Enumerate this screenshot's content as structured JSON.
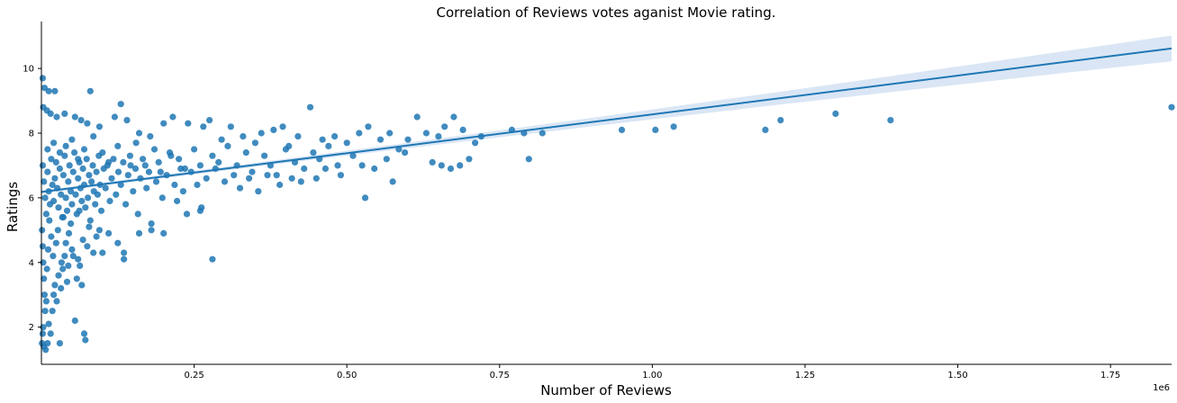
{
  "chart_data": {
    "type": "scatter",
    "title": "Correlation of Reviews votes aganist Movie rating.",
    "xlabel": "Number of Reviews",
    "ylabel": "Ratings",
    "x_offset_label": "1e6",
    "xlim": [
      0,
      1850000
    ],
    "ylim": [
      0.85,
      11.45
    ],
    "xticks": [
      {
        "value": 250000,
        "label": "0.25"
      },
      {
        "value": 500000,
        "label": "0.50"
      },
      {
        "value": 750000,
        "label": "0.75"
      },
      {
        "value": 1000000,
        "label": "1.00"
      },
      {
        "value": 1250000,
        "label": "1.25"
      },
      {
        "value": 1500000,
        "label": "1.50"
      },
      {
        "value": 1750000,
        "label": "1.75"
      }
    ],
    "yticks": [
      {
        "value": 2,
        "label": "2"
      },
      {
        "value": 4,
        "label": "4"
      },
      {
        "value": 6,
        "label": "6"
      },
      {
        "value": 8,
        "label": "8"
      },
      {
        "value": 10,
        "label": "10"
      }
    ],
    "grid": false,
    "point_color": "#1f77b4",
    "regression": {
      "x": [
        0,
        1850000
      ],
      "y": [
        6.18,
        10.62
      ],
      "ci_half_width": [
        0.05,
        0.4
      ],
      "color": "#1f77b4",
      "band_color": "#aec7e8"
    },
    "points": [
      [
        2000,
        9.7
      ],
      [
        5000,
        9.4
      ],
      [
        12000,
        9.3
      ],
      [
        22000,
        9.3
      ],
      [
        80000,
        9.3
      ],
      [
        130000,
        8.9
      ],
      [
        3000,
        8.8
      ],
      [
        9000,
        8.7
      ],
      [
        15000,
        8.6
      ],
      [
        25000,
        8.5
      ],
      [
        38000,
        8.6
      ],
      [
        55000,
        8.5
      ],
      [
        65000,
        8.4
      ],
      [
        75000,
        8.3
      ],
      [
        95000,
        8.2
      ],
      [
        120000,
        8.5
      ],
      [
        140000,
        8.4
      ],
      [
        160000,
        8.0
      ],
      [
        178000,
        7.9
      ],
      [
        200000,
        8.3
      ],
      [
        215000,
        8.5
      ],
      [
        240000,
        8.3
      ],
      [
        265000,
        8.2
      ],
      [
        275000,
        8.4
      ],
      [
        295000,
        7.8
      ],
      [
        310000,
        8.2
      ],
      [
        330000,
        7.9
      ],
      [
        350000,
        7.7
      ],
      [
        360000,
        8.0
      ],
      [
        380000,
        8.1
      ],
      [
        395000,
        8.2
      ],
      [
        405000,
        7.6
      ],
      [
        420000,
        7.9
      ],
      [
        440000,
        8.8
      ],
      [
        460000,
        7.8
      ],
      [
        480000,
        7.9
      ],
      [
        500000,
        7.7
      ],
      [
        520000,
        8.0
      ],
      [
        535000,
        8.2
      ],
      [
        555000,
        7.8
      ],
      [
        570000,
        8.0
      ],
      [
        585000,
        7.5
      ],
      [
        600000,
        7.8
      ],
      [
        615000,
        8.5
      ],
      [
        630000,
        8.0
      ],
      [
        650000,
        7.9
      ],
      [
        660000,
        8.2
      ],
      [
        675000,
        8.5
      ],
      [
        690000,
        8.1
      ],
      [
        710000,
        7.7
      ],
      [
        720000,
        7.9
      ],
      [
        770000,
        8.1
      ],
      [
        790000,
        8.0
      ],
      [
        820000,
        8.0
      ],
      [
        950000,
        8.1
      ],
      [
        1005000,
        8.1
      ],
      [
        1035000,
        8.2
      ],
      [
        1185000,
        8.1
      ],
      [
        1210000,
        8.4
      ],
      [
        1300000,
        8.6
      ],
      [
        1390000,
        8.4
      ],
      [
        1850000,
        8.8
      ],
      [
        10000,
        7.5
      ],
      [
        20000,
        7.7
      ],
      [
        30000,
        7.4
      ],
      [
        40000,
        7.6
      ],
      [
        50000,
        7.8
      ],
      [
        60000,
        7.2
      ],
      [
        70000,
        7.5
      ],
      [
        85000,
        7.9
      ],
      [
        100000,
        7.4
      ],
      [
        110000,
        7.1
      ],
      [
        125000,
        7.6
      ],
      [
        145000,
        7.3
      ],
      [
        155000,
        7.7
      ],
      [
        170000,
        7.0
      ],
      [
        185000,
        7.5
      ],
      [
        195000,
        6.8
      ],
      [
        210000,
        7.4
      ],
      [
        225000,
        7.2
      ],
      [
        235000,
        6.9
      ],
      [
        250000,
        7.5
      ],
      [
        260000,
        7.0
      ],
      [
        280000,
        7.3
      ],
      [
        290000,
        7.1
      ],
      [
        305000,
        7.6
      ],
      [
        320000,
        7.0
      ],
      [
        335000,
        7.4
      ],
      [
        345000,
        6.8
      ],
      [
        365000,
        7.3
      ],
      [
        375000,
        7.0
      ],
      [
        385000,
        6.7
      ],
      [
        400000,
        7.5
      ],
      [
        415000,
        7.1
      ],
      [
        430000,
        6.9
      ],
      [
        445000,
        7.4
      ],
      [
        455000,
        7.2
      ],
      [
        470000,
        7.6
      ],
      [
        485000,
        7.0
      ],
      [
        510000,
        7.3
      ],
      [
        525000,
        7.0
      ],
      [
        545000,
        6.9
      ],
      [
        565000,
        7.2
      ],
      [
        575000,
        6.5
      ],
      [
        595000,
        7.4
      ],
      [
        640000,
        7.1
      ],
      [
        655000,
        7.0
      ],
      [
        670000,
        6.9
      ],
      [
        685000,
        7.0
      ],
      [
        700000,
        7.2
      ],
      [
        798000,
        7.2
      ],
      [
        530000,
        6.0
      ],
      [
        2000,
        7.0
      ],
      [
        4000,
        6.5
      ],
      [
        6000,
        6.0
      ],
      [
        8000,
        5.5
      ],
      [
        10000,
        6.8
      ],
      [
        12000,
        6.2
      ],
      [
        14000,
        5.8
      ],
      [
        16000,
        7.2
      ],
      [
        18000,
        6.4
      ],
      [
        20000,
        5.9
      ],
      [
        22000,
        6.6
      ],
      [
        24000,
        7.1
      ],
      [
        26000,
        6.3
      ],
      [
        28000,
        5.7
      ],
      [
        30000,
        6.9
      ],
      [
        32000,
        6.1
      ],
      [
        34000,
        5.4
      ],
      [
        36000,
        6.7
      ],
      [
        38000,
        7.3
      ],
      [
        40000,
        6.0
      ],
      [
        42000,
        5.6
      ],
      [
        44000,
        6.5
      ],
      [
        46000,
        7.0
      ],
      [
        48000,
        6.2
      ],
      [
        50000,
        5.8
      ],
      [
        52000,
        6.8
      ],
      [
        54000,
        7.4
      ],
      [
        56000,
        6.1
      ],
      [
        58000,
        5.5
      ],
      [
        60000,
        6.6
      ],
      [
        62000,
        7.1
      ],
      [
        64000,
        6.3
      ],
      [
        66000,
        5.9
      ],
      [
        68000,
        6.9
      ],
      [
        70000,
        6.4
      ],
      [
        72000,
        5.7
      ],
      [
        74000,
        7.2
      ],
      [
        76000,
        6.0
      ],
      [
        78000,
        6.7
      ],
      [
        80000,
        5.3
      ],
      [
        82000,
        6.5
      ],
      [
        84000,
        7.0
      ],
      [
        86000,
        6.2
      ],
      [
        88000,
        5.8
      ],
      [
        90000,
        6.8
      ],
      [
        92000,
        6.1
      ],
      [
        94000,
        7.3
      ],
      [
        96000,
        6.4
      ],
      [
        98000,
        5.6
      ],
      [
        102000,
        6.9
      ],
      [
        105000,
        6.3
      ],
      [
        108000,
        7.0
      ],
      [
        112000,
        5.9
      ],
      [
        115000,
        6.6
      ],
      [
        118000,
        7.2
      ],
      [
        122000,
        6.1
      ],
      [
        126000,
        6.8
      ],
      [
        130000,
        6.4
      ],
      [
        134000,
        7.1
      ],
      [
        138000,
        5.8
      ],
      [
        142000,
        6.7
      ],
      [
        146000,
        7.0
      ],
      [
        150000,
        6.2
      ],
      [
        154000,
        6.9
      ],
      [
        158000,
        5.5
      ],
      [
        162000,
        6.6
      ],
      [
        166000,
        7.2
      ],
      [
        172000,
        6.3
      ],
      [
        176000,
        6.8
      ],
      [
        180000,
        5.2
      ],
      [
        188000,
        6.5
      ],
      [
        192000,
        7.1
      ],
      [
        198000,
        6.0
      ],
      [
        205000,
        6.7
      ],
      [
        212000,
        7.3
      ],
      [
        218000,
        6.4
      ],
      [
        222000,
        5.9
      ],
      [
        228000,
        6.9
      ],
      [
        232000,
        6.2
      ],
      [
        238000,
        5.5
      ],
      [
        245000,
        6.8
      ],
      [
        255000,
        6.4
      ],
      [
        262000,
        5.7
      ],
      [
        270000,
        6.6
      ],
      [
        285000,
        6.9
      ],
      [
        300000,
        6.5
      ],
      [
        315000,
        6.7
      ],
      [
        325000,
        6.3
      ],
      [
        340000,
        6.6
      ],
      [
        355000,
        6.2
      ],
      [
        370000,
        6.7
      ],
      [
        390000,
        6.4
      ],
      [
        410000,
        6.6
      ],
      [
        425000,
        6.5
      ],
      [
        450000,
        6.6
      ],
      [
        465000,
        6.9
      ],
      [
        490000,
        6.7
      ],
      [
        1000,
        5.0
      ],
      [
        2000,
        4.5
      ],
      [
        3000,
        4.0
      ],
      [
        4000,
        3.5
      ],
      [
        5000,
        3.0
      ],
      [
        6000,
        2.5
      ],
      [
        3000,
        2.0
      ],
      [
        2000,
        1.8
      ],
      [
        1000,
        1.5
      ],
      [
        4000,
        1.4
      ],
      [
        7000,
        1.3
      ],
      [
        10000,
        1.5
      ],
      [
        12000,
        2.1
      ],
      [
        15000,
        1.8
      ],
      [
        18000,
        2.5
      ],
      [
        20000,
        3.0
      ],
      [
        22000,
        3.3
      ],
      [
        25000,
        2.8
      ],
      [
        28000,
        3.6
      ],
      [
        30000,
        1.5
      ],
      [
        32000,
        3.2
      ],
      [
        35000,
        3.8
      ],
      [
        38000,
        4.2
      ],
      [
        40000,
        4.6
      ],
      [
        42000,
        3.4
      ],
      [
        45000,
        4.9
      ],
      [
        48000,
        5.2
      ],
      [
        50000,
        4.4
      ],
      [
        55000,
        2.2
      ],
      [
        58000,
        3.5
      ],
      [
        60000,
        4.1
      ],
      [
        63000,
        3.9
      ],
      [
        66000,
        3.3
      ],
      [
        68000,
        4.7
      ],
      [
        70000,
        1.8
      ],
      [
        72000,
        1.6
      ],
      [
        75000,
        4.5
      ],
      [
        78000,
        5.1
      ],
      [
        85000,
        4.3
      ],
      [
        90000,
        4.8
      ],
      [
        95000,
        5.0
      ],
      [
        100000,
        4.3
      ],
      [
        110000,
        4.9
      ],
      [
        125000,
        4.6
      ],
      [
        135000,
        4.3
      ],
      [
        135000,
        4.1
      ],
      [
        160000,
        4.9
      ],
      [
        180000,
        5.0
      ],
      [
        200000,
        4.9
      ],
      [
        260000,
        5.6
      ],
      [
        280000,
        4.1
      ],
      [
        8000,
        2.8
      ],
      [
        9000,
        3.8
      ],
      [
        11000,
        4.4
      ],
      [
        13000,
        5.3
      ],
      [
        16000,
        4.8
      ],
      [
        19000,
        4.2
      ],
      [
        24000,
        4.6
      ],
      [
        27000,
        5.0
      ],
      [
        33000,
        4.0
      ],
      [
        36000,
        5.4
      ],
      [
        44000,
        3.9
      ],
      [
        52000,
        4.2
      ],
      [
        62000,
        5.6
      ]
    ]
  }
}
